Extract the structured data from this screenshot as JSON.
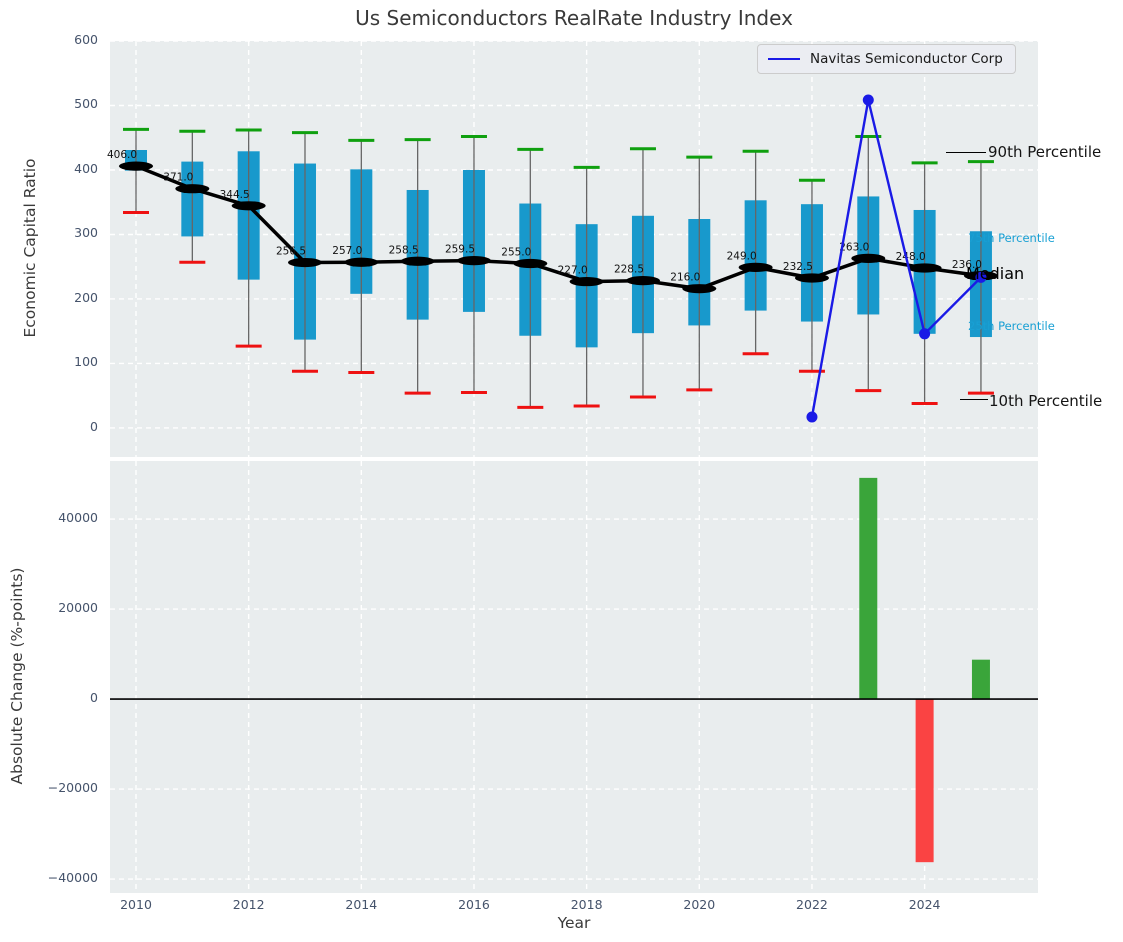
{
  "title": "Us Semiconductors RealRate Industry Index",
  "legend": {
    "label": "Navitas Semiconductor Corp"
  },
  "annotations": {
    "p90": "90th Percentile",
    "p75": "75th Percentile",
    "median": "Median",
    "p25": "25th Percentile",
    "p10": "10th Percentile"
  },
  "colors": {
    "panel_bg": "#e9edee",
    "box": "#1899cc",
    "whisker": "#666666",
    "cap_high": "#0fa00f",
    "cap_low": "#ee1111",
    "median_line": "#000000",
    "navitas_line": "#1a1ae6",
    "bar_up": "#3aa53a",
    "bar_down": "#fa4343",
    "tick_text": "#45536b",
    "annotation_blue": "#18a0d4",
    "grid": "#ffffff"
  },
  "chart_data": [
    {
      "type": "percentile-box-line",
      "title": "Us Semiconductors RealRate Industry Index",
      "ylabel": "Economic Capital Ratio",
      "ylim": [
        -45,
        600
      ],
      "ytick_values": [
        0,
        100,
        200,
        300,
        400,
        500,
        600
      ],
      "grid": true,
      "legend_position": "upper right",
      "years": [
        2010,
        2011,
        2012,
        2013,
        2014,
        2015,
        2016,
        2017,
        2018,
        2019,
        2020,
        2021,
        2022,
        2023,
        2024,
        2025
      ],
      "median": [
        406.0,
        371.0,
        344.5,
        256.5,
        257.0,
        258.5,
        259.5,
        255.0,
        227.0,
        228.5,
        216.0,
        249.0,
        232.5,
        263.0,
        248.0,
        236.0
      ],
      "median_labels": [
        "406.0",
        "371.0",
        "344.5",
        "256.5",
        "257.0",
        "258.5",
        "259.5",
        "255.0",
        "227.0",
        "228.5",
        "216.0",
        "249.0",
        "232.5",
        "263.0",
        "248.0",
        "236.0"
      ],
      "p75": [
        431,
        413,
        429,
        410,
        401,
        369,
        400,
        348,
        316,
        329,
        324,
        353,
        347,
        359,
        338,
        305
      ],
      "p25": [
        399,
        297,
        230,
        137,
        208,
        168,
        180,
        143,
        125,
        147,
        159,
        182,
        165,
        176,
        146,
        141
      ],
      "p90": [
        463,
        460,
        462,
        458,
        446,
        447,
        452,
        432,
        404,
        433,
        420,
        429,
        384,
        452,
        411,
        413
      ],
      "p10": [
        334,
        257,
        127,
        88,
        86,
        54,
        55,
        32,
        34,
        48,
        59,
        115,
        88,
        58,
        38,
        54
      ],
      "series": [
        {
          "name": "Navitas Semiconductor Corp",
          "years": [
            2022,
            2023,
            2024,
            2025
          ],
          "values": [
            17,
            508.5,
            146,
            233.5
          ]
        }
      ]
    },
    {
      "type": "bar",
      "ylabel": "Absolute Change (%-points)",
      "xlabel": "Year",
      "ylim": [
        -43100,
        52900
      ],
      "ytick_values": [
        -40000,
        -20000,
        0,
        20000,
        40000
      ],
      "ytick_labels": [
        "−40000",
        "−20000",
        "0",
        "20000",
        "40000"
      ],
      "grid": true,
      "xticks": [
        2010,
        2012,
        2014,
        2016,
        2018,
        2020,
        2022,
        2024
      ],
      "bars": {
        "years": [
          2023,
          2024,
          2025
        ],
        "values": [
          49150,
          -36250,
          8750
        ],
        "directions": [
          "up",
          "down",
          "up"
        ]
      }
    }
  ]
}
